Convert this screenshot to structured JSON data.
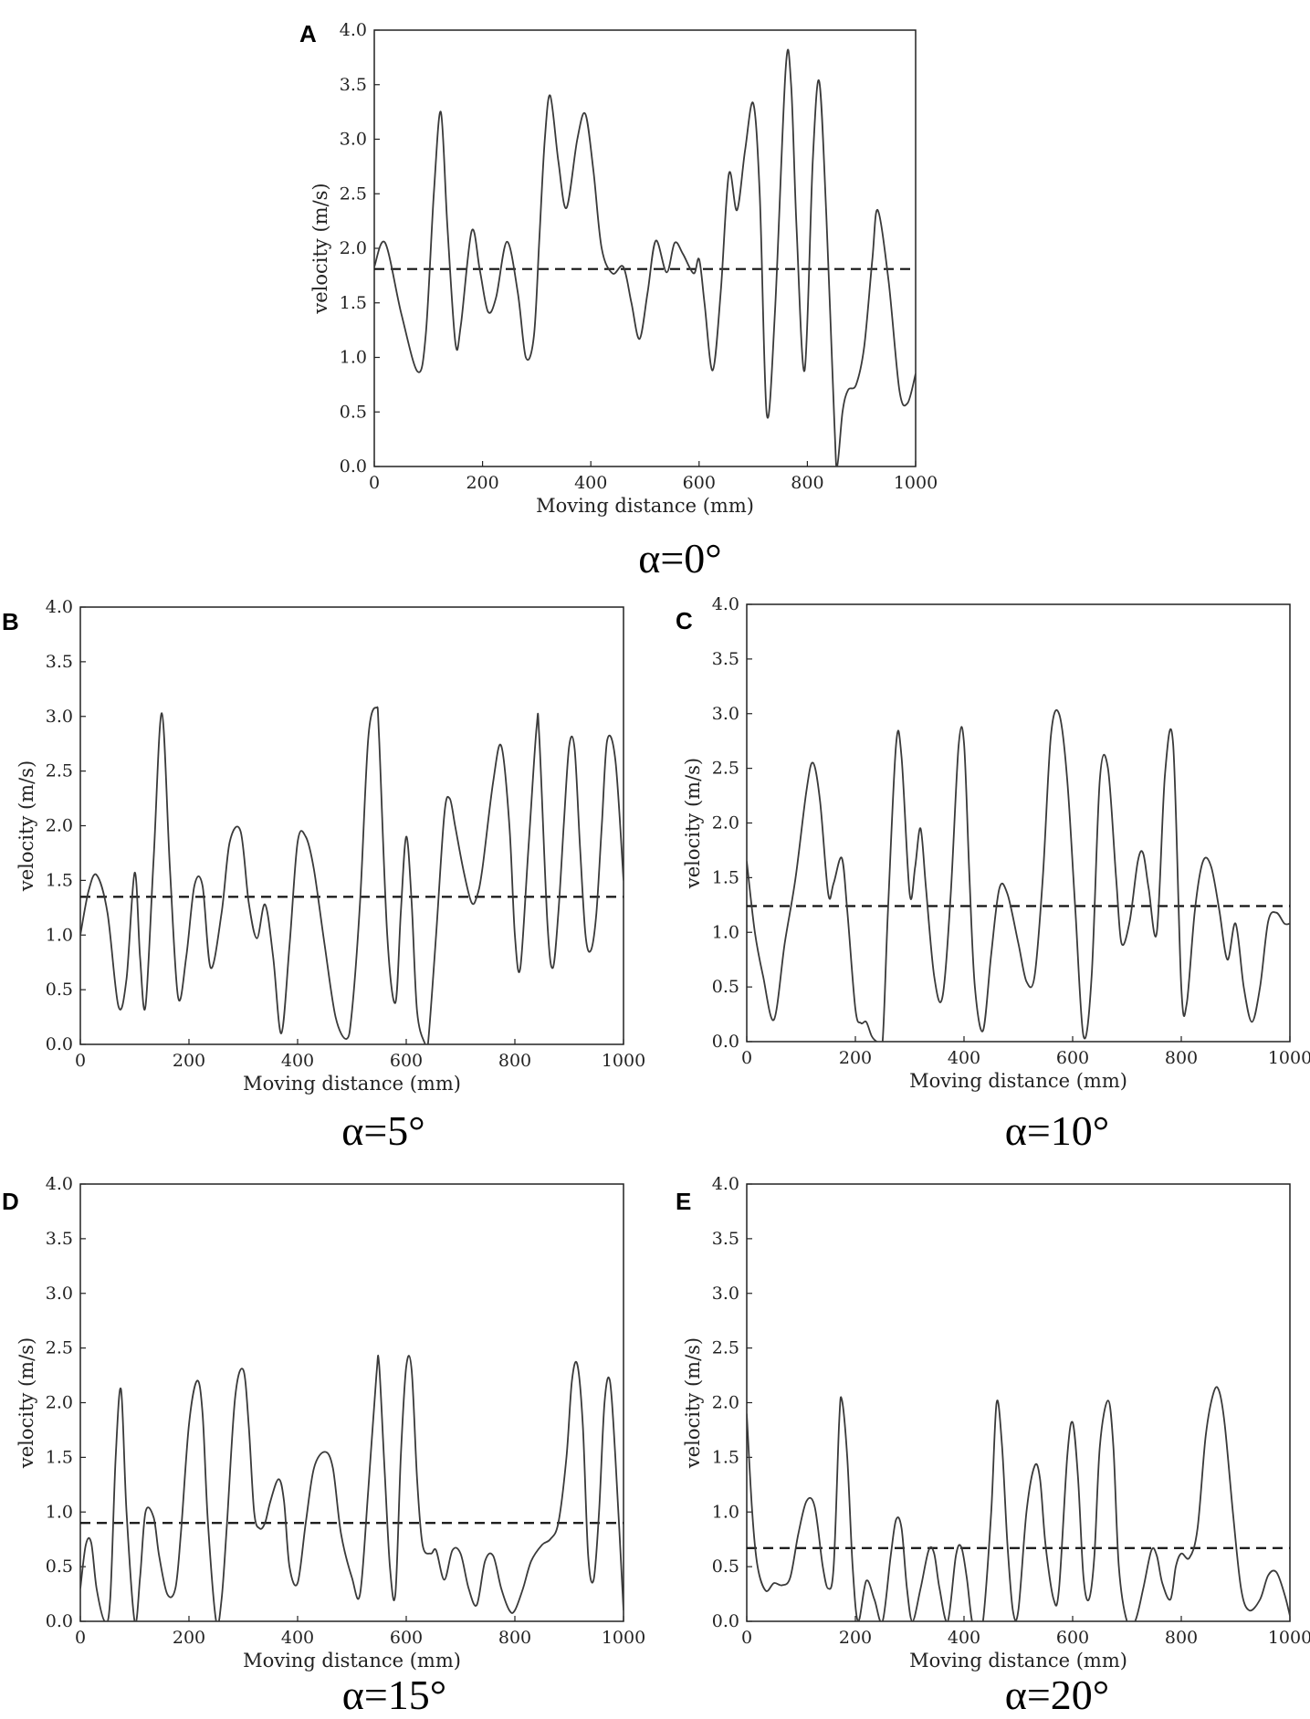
{
  "chart_data": [
    {
      "type": "line",
      "panel": "A",
      "caption": "α=0°",
      "xlabel": "Moving distance (mm)",
      "ylabel": "velocity (m/s)",
      "xlim": [
        0,
        1000
      ],
      "ylim": [
        0,
        4.0
      ],
      "xticks": [
        "0",
        "200",
        "400",
        "600",
        "800",
        "1000"
      ],
      "yticks": [
        "0.0",
        "0.5",
        "1.0",
        "1.5",
        "2.0",
        "2.5",
        "3.0",
        "3.5",
        "4.0"
      ],
      "mean_line": 1.81,
      "series": [
        {
          "x": [
            0,
            20,
            50,
            80,
            95,
            110,
            123,
            135,
            150,
            160,
            180,
            195,
            210,
            225,
            245,
            265,
            280,
            295,
            305,
            315,
            325,
            340,
            355,
            375,
            390,
            405,
            420,
            440,
            460,
            475,
            490,
            505,
            520,
            540,
            555,
            570,
            590,
            600,
            610,
            625,
            640,
            655,
            670,
            685,
            700,
            712,
            725,
            740,
            760,
            770,
            780,
            795,
            810,
            822,
            835,
            850,
            855,
            865,
            875,
            890,
            905,
            920,
            930,
            950,
            970,
            985,
            1000
          ],
          "y": [
            1.83,
            2.05,
            1.4,
            0.87,
            1.2,
            2.5,
            3.25,
            2.2,
            1.13,
            1.3,
            2.16,
            1.8,
            1.42,
            1.55,
            2.06,
            1.6,
            1.0,
            1.2,
            2.1,
            3.0,
            3.4,
            2.8,
            2.37,
            3.0,
            3.23,
            2.7,
            2.0,
            1.77,
            1.83,
            1.5,
            1.17,
            1.6,
            2.07,
            1.78,
            2.05,
            1.95,
            1.77,
            1.9,
            1.5,
            0.88,
            1.6,
            2.68,
            2.35,
            2.9,
            3.33,
            2.5,
            0.48,
            1.4,
            3.65,
            3.5,
            2.2,
            0.88,
            2.8,
            3.53,
            2.3,
            0.4,
            0.0,
            0.5,
            0.7,
            0.75,
            1.1,
            1.9,
            2.35,
            1.7,
            0.7,
            0.58,
            0.85
          ]
        }
      ]
    },
    {
      "type": "line",
      "panel": "B",
      "caption": "α=5°",
      "xlabel": "Moving distance (mm)",
      "ylabel": "velocity (m/s)",
      "xlim": [
        0,
        1000
      ],
      "ylim": [
        0,
        4.0
      ],
      "xticks": [
        "0",
        "200",
        "400",
        "600",
        "800",
        "1000"
      ],
      "yticks": [
        "0.0",
        "0.5",
        "1.0",
        "1.5",
        "2.0",
        "2.5",
        "3.0",
        "3.5",
        "4.0"
      ],
      "mean_line": 1.35,
      "series": [
        {
          "x": [
            0,
            15,
            30,
            50,
            70,
            85,
            100,
            110,
            120,
            135,
            150,
            165,
            180,
            195,
            210,
            225,
            240,
            260,
            275,
            295,
            310,
            325,
            340,
            355,
            370,
            385,
            400,
            415,
            430,
            450,
            470,
            490,
            500,
            515,
            530,
            545,
            550,
            565,
            580,
            590,
            600,
            610,
            620,
            635,
            640,
            655,
            670,
            680,
            690,
            705,
            720,
            730,
            740,
            760,
            775,
            790,
            800,
            810,
            825,
            840,
            845,
            860,
            870,
            880,
            890,
            900,
            910,
            920,
            930,
            940,
            950,
            960,
            970,
            985,
            1000
          ],
          "y": [
            1.0,
            1.4,
            1.55,
            1.2,
            0.35,
            0.6,
            1.57,
            0.8,
            0.35,
            1.7,
            3.03,
            1.6,
            0.43,
            0.8,
            1.45,
            1.45,
            0.7,
            1.2,
            1.85,
            1.95,
            1.3,
            0.97,
            1.28,
            0.8,
            0.1,
            0.9,
            1.85,
            1.9,
            1.6,
            0.9,
            0.25,
            0.05,
            0.3,
            1.3,
            2.8,
            3.08,
            2.8,
            1.0,
            0.38,
            1.2,
            1.9,
            1.3,
            0.3,
            0.0,
            0.0,
            1.0,
            2.1,
            2.25,
            2.0,
            1.6,
            1.3,
            1.35,
            1.6,
            2.4,
            2.73,
            2.0,
            1.0,
            0.7,
            1.8,
            2.9,
            2.8,
            1.1,
            0.7,
            1.2,
            2.0,
            2.73,
            2.7,
            1.8,
            1.0,
            0.86,
            1.2,
            2.0,
            2.78,
            2.6,
            1.5
          ]
        }
      ]
    },
    {
      "type": "line",
      "panel": "C",
      "caption": "α=10°",
      "xlabel": "Moving distance (mm)",
      "ylabel": "velocity (m/s)",
      "xlim": [
        0,
        1000
      ],
      "ylim": [
        0,
        4.0
      ],
      "xticks": [
        "0",
        "200",
        "400",
        "600",
        "800",
        "1000"
      ],
      "yticks": [
        "0.0",
        "0.5",
        "1.0",
        "1.5",
        "2.0",
        "2.5",
        "3.0",
        "3.5",
        "4.0"
      ],
      "mean_line": 1.24,
      "series": [
        {
          "x": [
            0,
            15,
            30,
            50,
            70,
            90,
            110,
            122,
            135,
            150,
            160,
            175,
            185,
            200,
            210,
            220,
            230,
            240,
            250,
            260,
            275,
            285,
            300,
            310,
            320,
            330,
            345,
            360,
            375,
            390,
            400,
            410,
            420,
            435,
            450,
            465,
            480,
            500,
            515,
            530,
            545,
            560,
            575,
            590,
            605,
            620,
            635,
            650,
            665,
            680,
            690,
            705,
            720,
            730,
            740,
            755,
            770,
            785,
            800,
            810,
            825,
            840,
            855,
            870,
            885,
            900,
            915,
            930,
            945,
            960,
            975,
            990,
            1000
          ],
          "y": [
            1.65,
            1.0,
            0.6,
            0.2,
            0.9,
            1.5,
            2.3,
            2.55,
            2.2,
            1.35,
            1.45,
            1.68,
            1.2,
            0.3,
            0.17,
            0.18,
            0.05,
            0.0,
            0.0,
            1.2,
            2.72,
            2.6,
            1.35,
            1.6,
            1.95,
            1.4,
            0.6,
            0.4,
            1.3,
            2.7,
            2.73,
            1.5,
            0.5,
            0.1,
            0.8,
            1.4,
            1.35,
            0.9,
            0.55,
            0.6,
            1.5,
            2.8,
            3.0,
            2.4,
            1.2,
            0.05,
            0.6,
            2.4,
            2.5,
            1.5,
            0.9,
            1.1,
            1.65,
            1.72,
            1.4,
            1.0,
            2.45,
            2.72,
            0.5,
            0.35,
            1.2,
            1.65,
            1.6,
            1.2,
            0.75,
            1.08,
            0.5,
            0.18,
            0.5,
            1.1,
            1.18,
            1.08,
            1.08
          ]
        }
      ]
    },
    {
      "type": "line",
      "panel": "D",
      "caption": "α=15°",
      "xlabel": "Moving distance (mm)",
      "ylabel": "velocity (m/s)",
      "xlim": [
        0,
        1000
      ],
      "ylim": [
        0,
        4.0
      ],
      "xticks": [
        "0",
        "200",
        "400",
        "600",
        "800",
        "1000"
      ],
      "yticks": [
        "0.0",
        "0.5",
        "1.0",
        "1.5",
        "2.0",
        "2.5",
        "3.0",
        "3.5",
        "4.0"
      ],
      "mean_line": 0.9,
      "series": [
        {
          "x": [
            0,
            10,
            20,
            30,
            45,
            55,
            65,
            75,
            85,
            100,
            110,
            120,
            135,
            145,
            160,
            175,
            185,
            200,
            215,
            225,
            235,
            250,
            260,
            270,
            285,
            300,
            310,
            320,
            330,
            340,
            350,
            365,
            375,
            385,
            400,
            415,
            430,
            450,
            465,
            480,
            500,
            515,
            530,
            545,
            550,
            560,
            570,
            580,
            590,
            600,
            610,
            620,
            630,
            645,
            655,
            670,
            685,
            700,
            715,
            730,
            745,
            760,
            775,
            790,
            800,
            815,
            830,
            850,
            865,
            880,
            895,
            905,
            915,
            925,
            935,
            945,
            955,
            965,
            975,
            985,
            1000
          ],
          "y": [
            0.3,
            0.7,
            0.72,
            0.3,
            0.0,
            0.2,
            1.5,
            2.12,
            1.0,
            0.0,
            0.4,
            1.0,
            0.95,
            0.6,
            0.25,
            0.3,
            0.8,
            1.8,
            2.2,
            1.9,
            0.9,
            0.0,
            0.2,
            0.9,
            2.05,
            2.3,
            1.8,
            1.0,
            0.85,
            0.9,
            1.1,
            1.3,
            1.1,
            0.5,
            0.35,
            0.9,
            1.4,
            1.55,
            1.4,
            0.8,
            0.4,
            0.25,
            1.2,
            2.25,
            2.35,
            1.4,
            0.5,
            0.25,
            1.5,
            2.33,
            2.3,
            1.3,
            0.7,
            0.62,
            0.65,
            0.38,
            0.65,
            0.62,
            0.3,
            0.15,
            0.55,
            0.6,
            0.3,
            0.1,
            0.1,
            0.3,
            0.55,
            0.7,
            0.75,
            0.9,
            1.5,
            2.2,
            2.35,
            1.8,
            0.6,
            0.38,
            1.0,
            2.0,
            2.2,
            1.5,
            0.1
          ]
        }
      ]
    },
    {
      "type": "line",
      "panel": "E",
      "caption": "α=20°",
      "xlabel": "Moving distance (mm)",
      "ylabel": "velocity (m/s)",
      "xlim": [
        0,
        1000
      ],
      "ylim": [
        0,
        4.0
      ],
      "xticks": [
        "0",
        "200",
        "400",
        "600",
        "800",
        "1000"
      ],
      "yticks": [
        "0.0",
        "0.5",
        "1.0",
        "1.5",
        "2.0",
        "2.5",
        "3.0",
        "3.5",
        "4.0"
      ],
      "mean_line": 0.67,
      "series": [
        {
          "x": [
            0,
            10,
            20,
            35,
            50,
            65,
            80,
            95,
            110,
            125,
            140,
            150,
            160,
            170,
            175,
            185,
            195,
            205,
            220,
            235,
            250,
            265,
            275,
            285,
            295,
            305,
            320,
            335,
            345,
            355,
            370,
            385,
            395,
            405,
            415,
            425,
            435,
            450,
            460,
            470,
            480,
            490,
            500,
            515,
            530,
            540,
            550,
            565,
            575,
            590,
            600,
            610,
            620,
            630,
            640,
            650,
            665,
            675,
            685,
            700,
            715,
            730,
            745,
            755,
            765,
            780,
            790,
            800,
            815,
            830,
            845,
            860,
            870,
            880,
            895,
            910,
            925,
            945,
            960,
            975,
            990,
            1000
          ],
          "y": [
            1.9,
            1.0,
            0.5,
            0.28,
            0.35,
            0.33,
            0.4,
            0.8,
            1.1,
            1.05,
            0.5,
            0.3,
            0.5,
            1.8,
            2.03,
            1.5,
            0.5,
            0.0,
            0.37,
            0.2,
            0.0,
            0.6,
            0.93,
            0.85,
            0.3,
            0.0,
            0.3,
            0.65,
            0.62,
            0.3,
            0.0,
            0.6,
            0.68,
            0.4,
            0.0,
            0.0,
            0.0,
            1.0,
            2.0,
            1.6,
            0.7,
            0.1,
            0.1,
            1.0,
            1.42,
            1.3,
            0.7,
            0.2,
            0.3,
            1.5,
            1.82,
            1.3,
            0.4,
            0.2,
            0.6,
            1.6,
            2.02,
            1.6,
            0.5,
            0.0,
            0.0,
            0.3,
            0.65,
            0.6,
            0.35,
            0.2,
            0.5,
            0.62,
            0.58,
            0.85,
            1.7,
            2.1,
            2.1,
            1.8,
            1.0,
            0.3,
            0.1,
            0.2,
            0.42,
            0.45,
            0.25,
            0.05
          ]
        }
      ]
    }
  ]
}
